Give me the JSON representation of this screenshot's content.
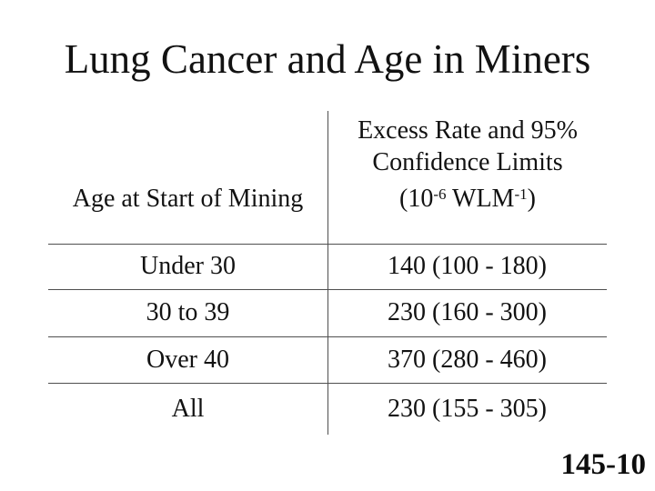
{
  "slide": {
    "title": "Lung Cancer and Age in Miners",
    "slide_number": "145-10"
  },
  "table": {
    "col1_header": "Age at Start of Mining",
    "col2_header": {
      "line1": "Excess Rate and 95%",
      "line2": "Confidence Limits",
      "unit_open": "(10",
      "unit_sup1": "-6",
      "unit_mid": " WLM",
      "unit_sup2": "-1",
      "unit_close": ")"
    },
    "rows": [
      {
        "age": "Under 30",
        "rate": "140 (100 - 180)"
      },
      {
        "age": "30 to 39",
        "rate": "230 (160 - 300)"
      },
      {
        "age": "Over 40",
        "rate": "370 (280 - 460)"
      },
      {
        "age": "All",
        "rate": "230 (155 - 305)"
      }
    ]
  }
}
